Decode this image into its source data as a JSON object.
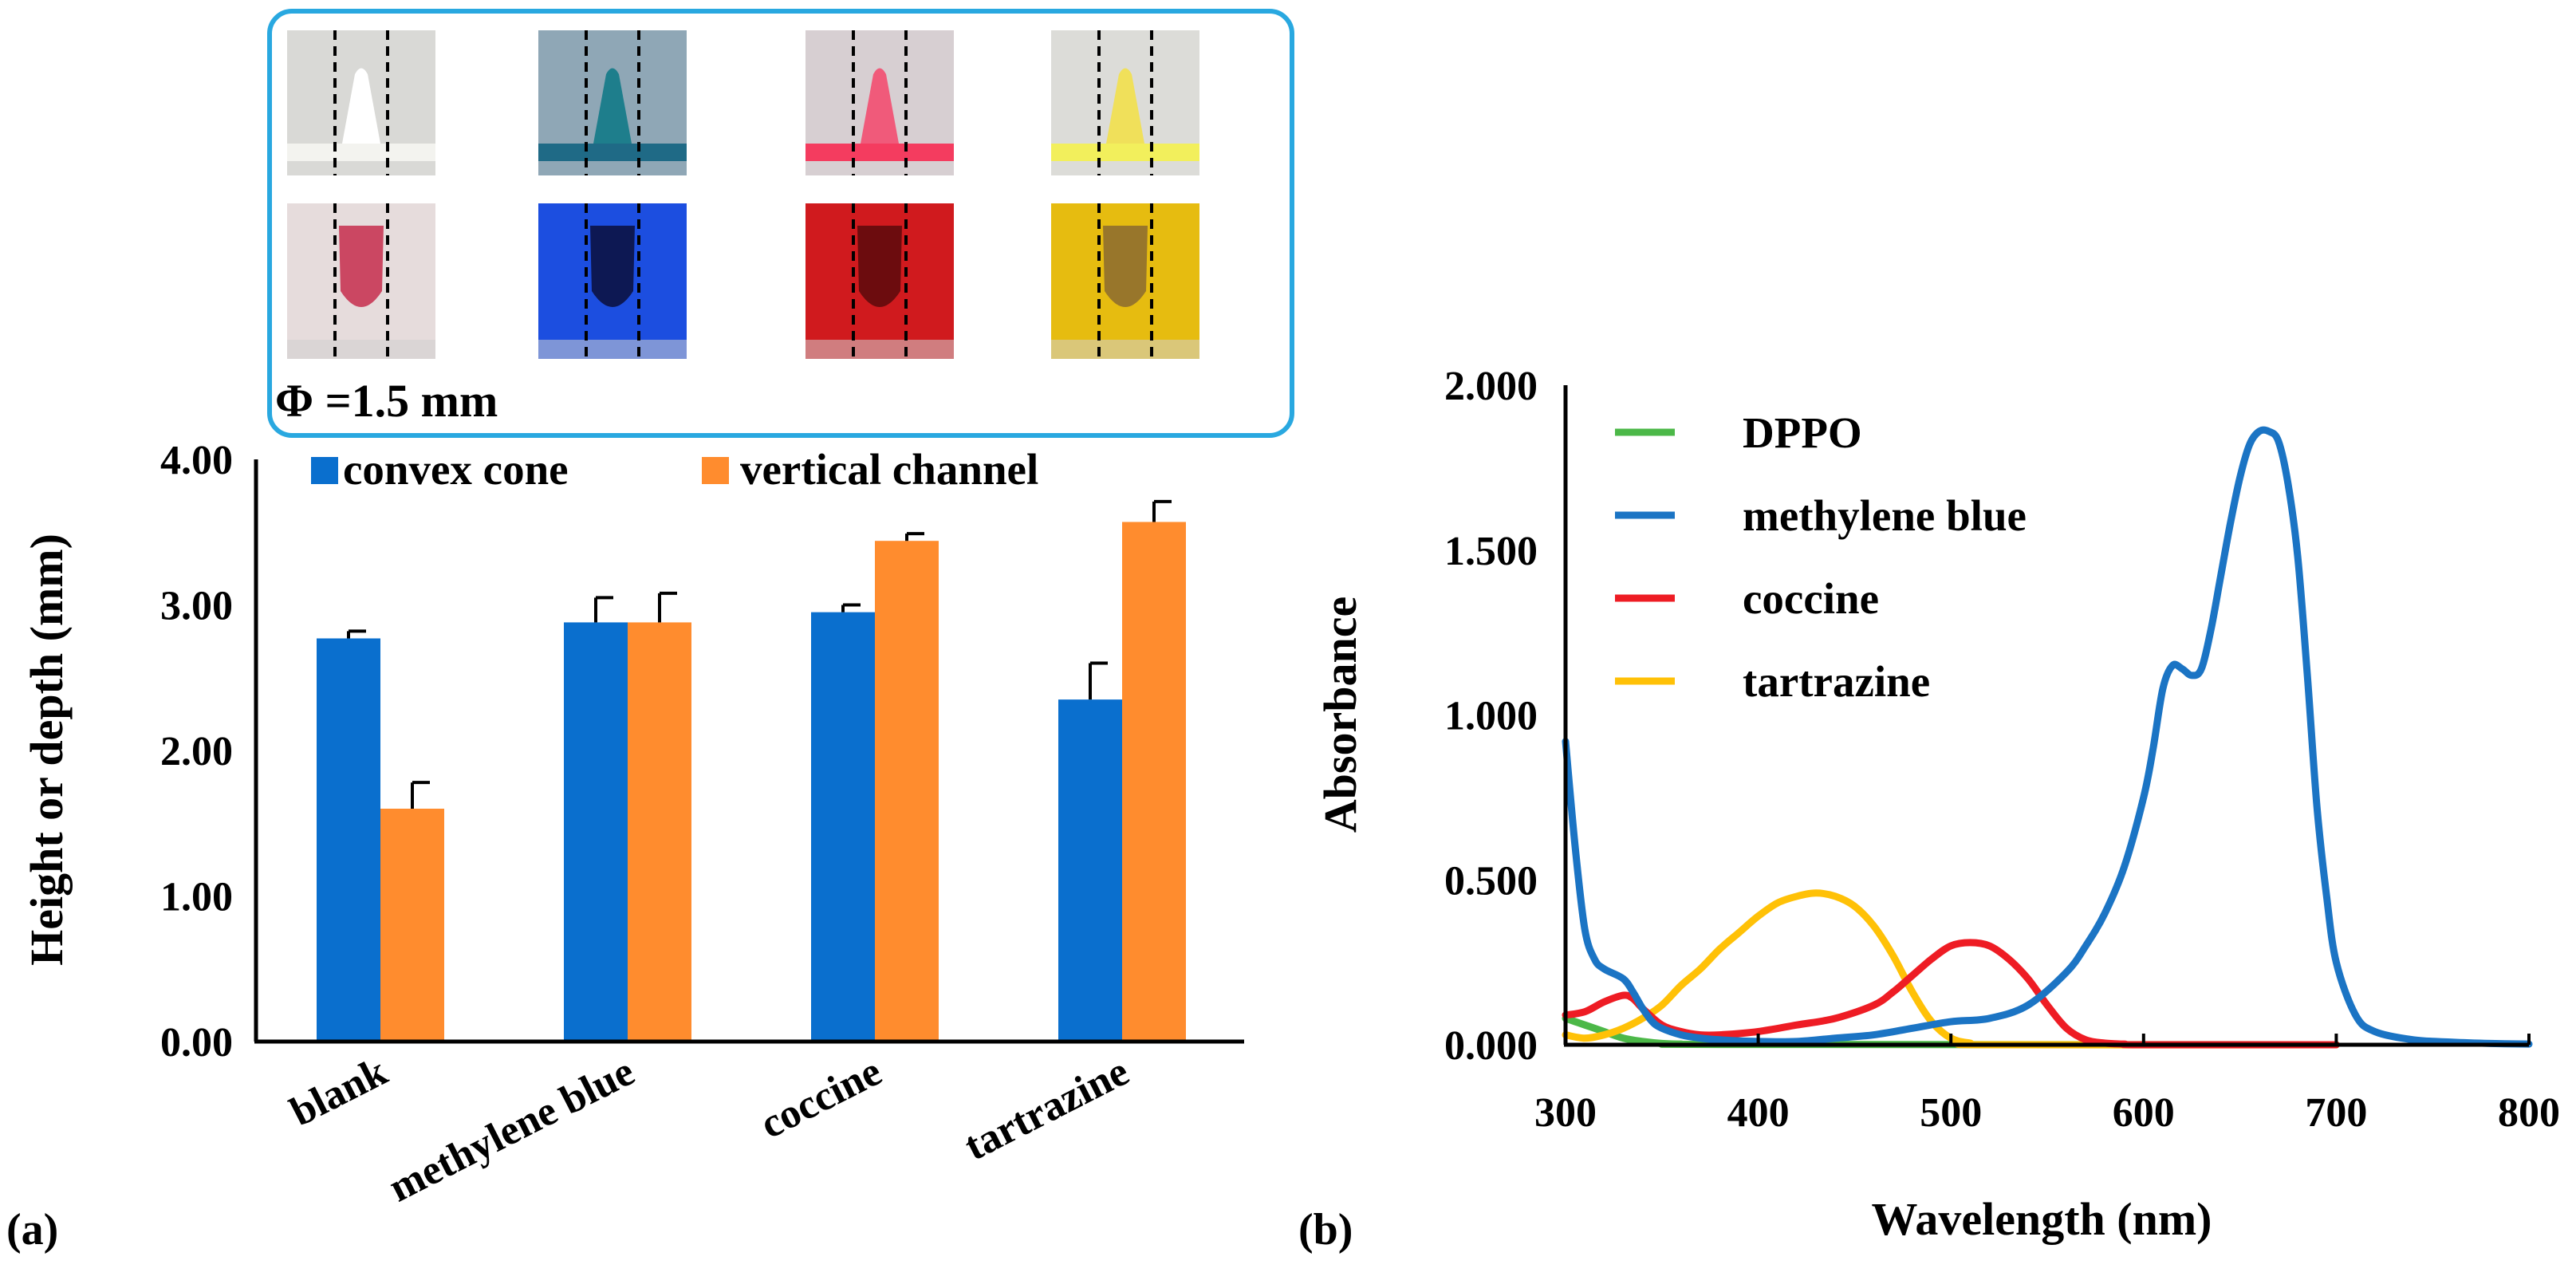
{
  "panel_a_label": "(a)",
  "panel_b_label": "(b)",
  "inset": {
    "diameter_label": "Φ =1.5 mm",
    "photos": [
      {
        "name": "blank",
        "cone_bg": "#d9d9d6",
        "cone_color": "#ffffff",
        "base_color": "#f3f3ef",
        "channel_bg": "#e6dcdc",
        "channel_color": "#c52d4c"
      },
      {
        "name": "methylene blue",
        "cone_bg": "#8fa7b6",
        "cone_color": "#1e7e8c",
        "base_color": "#1f6a86",
        "channel_bg": "#1c4ee0",
        "channel_color": "#0a0f3a"
      },
      {
        "name": "coccine",
        "cone_bg": "#d7cfd2",
        "cone_color": "#f05a7a",
        "base_color": "#f43c5f",
        "channel_bg": "#d01a1e",
        "channel_color": "#5a0a0c"
      },
      {
        "name": "tartrazine",
        "cone_bg": "#dcdcd8",
        "cone_color": "#f0e05a",
        "base_color": "#f2ef5c",
        "channel_bg": "#e6bc10",
        "channel_color": "#8a6a30"
      }
    ]
  },
  "colors": {
    "convex_cone": "#0a6fce",
    "vertical_channel": "#ff8c2e",
    "DPPO": "#4cb848",
    "methylene_blue": "#1b74c4",
    "coccine": "#ee1c24",
    "tartrazine": "#ffc107",
    "inset_border": "#29a8e0"
  },
  "chart_data": [
    {
      "type": "bar",
      "panel": "(a)",
      "title": "",
      "xlabel": "",
      "ylabel": "Height or depth (mm)",
      "ylim": [
        0,
        4
      ],
      "yticks": [
        "0.00",
        "1.00",
        "2.00",
        "3.00",
        "4.00"
      ],
      "categories": [
        "blank",
        "methylene blue",
        "coccine",
        "tartrazine"
      ],
      "series": [
        {
          "name": "convex cone",
          "values": [
            2.77,
            2.88,
            2.95,
            2.35
          ],
          "errors": [
            0.05,
            0.17,
            0.05,
            0.25
          ]
        },
        {
          "name": "vertical channel",
          "values": [
            1.6,
            2.88,
            3.44,
            3.57
          ],
          "errors": [
            0.18,
            0.2,
            0.05,
            0.14
          ]
        }
      ],
      "legend": "top"
    },
    {
      "type": "line",
      "panel": "(b)",
      "title": "",
      "xlabel": "Wavelength (nm)",
      "ylabel": "Absorbance",
      "xlim": [
        300,
        800
      ],
      "ylim": [
        0,
        2
      ],
      "xticks": [
        "300",
        "400",
        "500",
        "600",
        "700",
        "800"
      ],
      "yticks": [
        "0.000",
        "0.500",
        "1.000",
        "1.500",
        "2.000"
      ],
      "legend": "top-left",
      "series": [
        {
          "name": "DPPO",
          "x": [
            300,
            305,
            310,
            320,
            330,
            340,
            350,
            360,
            380,
            700
          ],
          "y": [
            0.08,
            0.07,
            0.06,
            0.04,
            0.02,
            0.01,
            0.004,
            0.002,
            0.001,
            0.0
          ]
        },
        {
          "name": "methylene blue",
          "x": [
            300,
            305,
            310,
            315,
            320,
            330,
            335,
            340,
            345,
            350,
            360,
            370,
            380,
            400,
            420,
            440,
            460,
            480,
            500,
            520,
            540,
            560,
            570,
            580,
            590,
            600,
            605,
            610,
            615,
            620,
            625,
            630,
            635,
            640,
            645,
            650,
            655,
            660,
            665,
            670,
            675,
            680,
            685,
            690,
            695,
            700,
            710,
            720,
            740,
            760,
            780,
            800
          ],
          "y": [
            0.92,
            0.6,
            0.35,
            0.26,
            0.23,
            0.2,
            0.16,
            0.11,
            0.07,
            0.05,
            0.03,
            0.02,
            0.015,
            0.01,
            0.01,
            0.02,
            0.03,
            0.05,
            0.07,
            0.08,
            0.12,
            0.22,
            0.3,
            0.4,
            0.54,
            0.75,
            0.9,
            1.08,
            1.15,
            1.14,
            1.12,
            1.14,
            1.26,
            1.42,
            1.58,
            1.72,
            1.82,
            1.86,
            1.86,
            1.83,
            1.7,
            1.48,
            1.12,
            0.72,
            0.45,
            0.25,
            0.09,
            0.04,
            0.015,
            0.008,
            0.004,
            0.002
          ]
        },
        {
          "name": "coccine",
          "x": [
            300,
            310,
            320,
            330,
            335,
            340,
            350,
            360,
            370,
            380,
            400,
            420,
            440,
            460,
            470,
            480,
            490,
            500,
            510,
            520,
            530,
            540,
            550,
            560,
            570,
            580,
            590,
            600,
            700
          ],
          "y": [
            0.09,
            0.1,
            0.13,
            0.15,
            0.14,
            0.11,
            0.06,
            0.04,
            0.03,
            0.03,
            0.04,
            0.06,
            0.08,
            0.12,
            0.16,
            0.21,
            0.26,
            0.3,
            0.31,
            0.3,
            0.26,
            0.2,
            0.12,
            0.05,
            0.015,
            0.005,
            0.002,
            0.0,
            0.0
          ]
        },
        {
          "name": "tartrazine",
          "x": [
            300,
            310,
            320,
            330,
            340,
            350,
            360,
            370,
            380,
            390,
            400,
            410,
            420,
            430,
            440,
            450,
            460,
            470,
            480,
            490,
            500,
            510,
            520,
            700
          ],
          "y": [
            0.03,
            0.02,
            0.03,
            0.05,
            0.08,
            0.12,
            0.18,
            0.23,
            0.29,
            0.34,
            0.39,
            0.43,
            0.45,
            0.46,
            0.45,
            0.42,
            0.36,
            0.27,
            0.16,
            0.07,
            0.02,
            0.005,
            0.0,
            0.0
          ]
        }
      ]
    }
  ]
}
